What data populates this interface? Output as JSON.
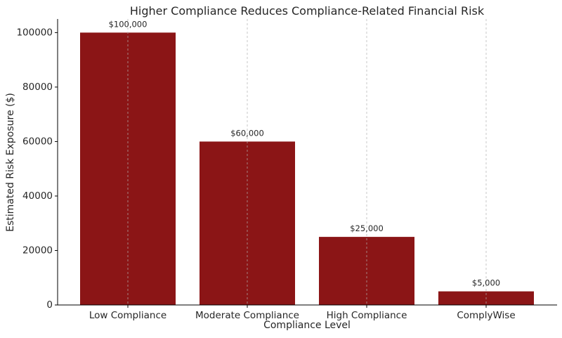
{
  "chart_data": {
    "type": "bar",
    "title": "Higher Compliance Reduces Compliance-Related Financial Risk",
    "xlabel": "Compliance Level",
    "ylabel": "Estimated Risk Exposure ($)",
    "categories": [
      "Low Compliance",
      "Moderate Compliance",
      "High Compliance",
      "ComplyWise"
    ],
    "values": [
      100000,
      60000,
      25000,
      5000
    ],
    "data_labels": [
      "$100,000",
      "$60,000",
      "$25,000",
      "$5,000"
    ],
    "ylim": [
      0,
      105000
    ],
    "yticks": [
      0,
      20000,
      40000,
      60000,
      80000,
      100000
    ],
    "ytick_labels": [
      "0",
      "20000",
      "40000",
      "60000",
      "80000",
      "100000"
    ],
    "grid": {
      "x": true,
      "y": false,
      "style": "dashed"
    },
    "colors": {
      "bar": "#8b1516",
      "grid": "#b0b0b0",
      "axis": "#000000",
      "text": "#262626"
    }
  }
}
